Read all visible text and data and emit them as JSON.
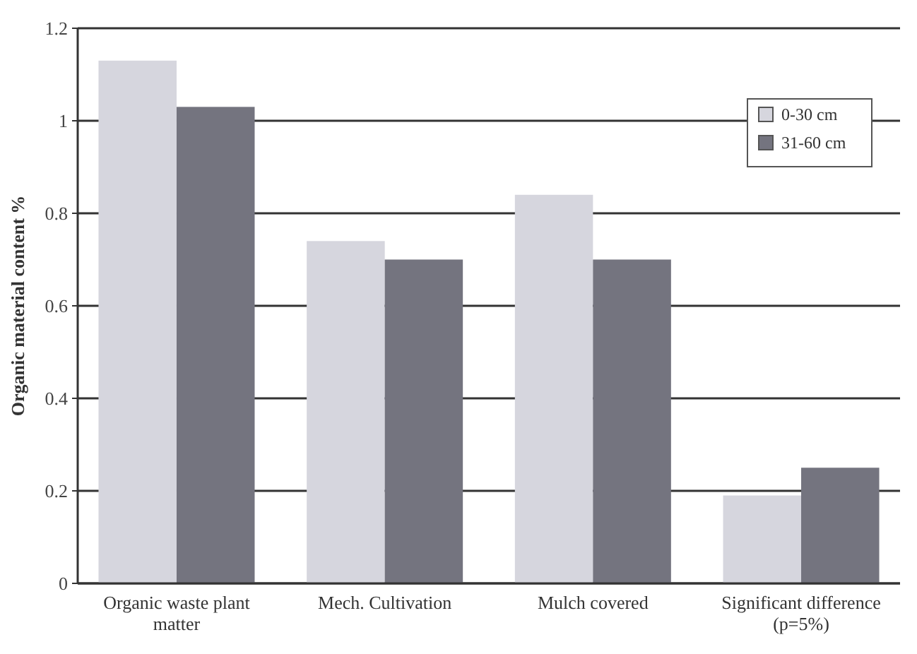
{
  "chart_data": {
    "type": "bar",
    "ylabel": "Organic material content  %",
    "categories": [
      "Organic waste plant matter",
      "Mech. Cultivation",
      "Mulch covered",
      "Significant difference (p=5%)"
    ],
    "series": [
      {
        "name": "0-30 cm",
        "color": "#d6d6de",
        "values": [
          1.13,
          0.74,
          0.84,
          0.19
        ]
      },
      {
        "name": "31-60 cm",
        "color": "#74747f",
        "values": [
          1.03,
          0.7,
          0.7,
          0.25
        ]
      }
    ],
    "ylim": [
      0,
      1.2
    ],
    "yticks": [
      0,
      0.2,
      0.4,
      0.6,
      0.8,
      1,
      1.2
    ],
    "grid": "y",
    "legend": "top right"
  }
}
